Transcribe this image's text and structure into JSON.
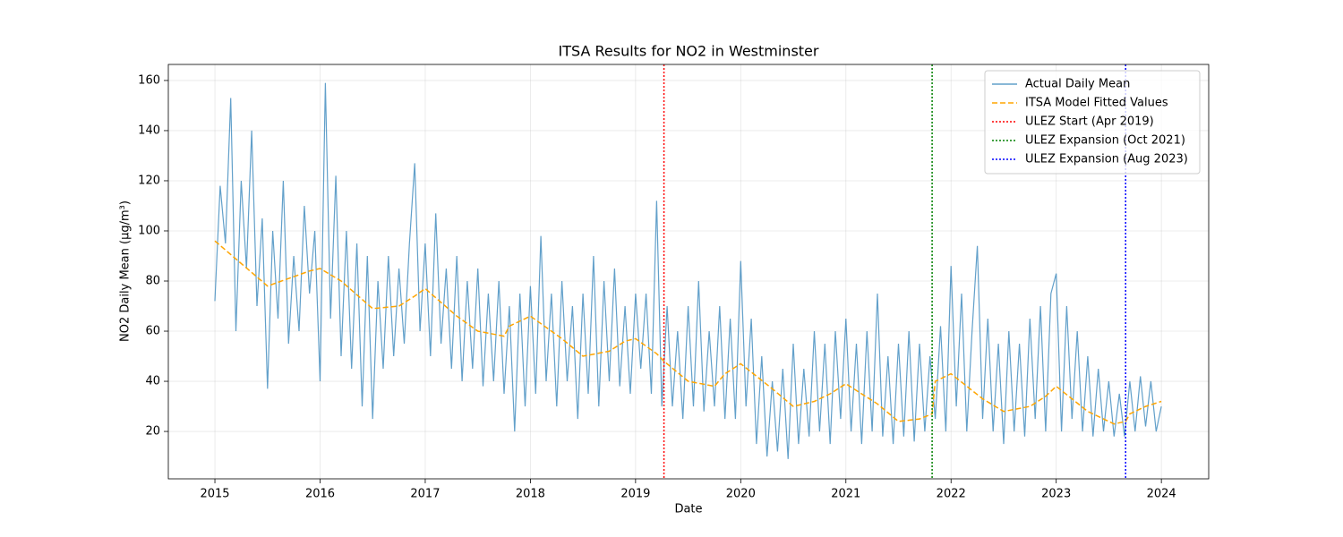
{
  "chart_data": {
    "type": "line",
    "title": "ITSA Results for NO2 in Westminster",
    "x_label": "Date",
    "y_label": "NO2 Daily Mean (µg/m³)",
    "xlim": [
      2014.557,
      2024.45
    ],
    "ylim": [
      1.1,
      166.4
    ],
    "xticks": [
      2015,
      2016,
      2017,
      2018,
      2019,
      2020,
      2021,
      2022,
      2023,
      2024
    ],
    "yticks": [
      20,
      40,
      60,
      80,
      100,
      120,
      140,
      160
    ],
    "grid": true,
    "legend": "upper right",
    "series": [
      {
        "name": "Actual Daily Mean",
        "color": "#1f77b4",
        "opacity": 0.7,
        "style": "solid",
        "x": [
          2015,
          2015.05,
          2015.1,
          2015.15,
          2015.2,
          2015.25,
          2015.3,
          2015.35,
          2015.4,
          2015.45,
          2015.5,
          2015.55,
          2015.6,
          2015.65,
          2015.7,
          2015.75,
          2015.8,
          2015.85,
          2015.9,
          2015.95,
          2016,
          2016.05,
          2016.1,
          2016.15,
          2016.2,
          2016.25,
          2016.3,
          2016.35,
          2016.4,
          2016.45,
          2016.5,
          2016.55,
          2016.6,
          2016.65,
          2016.7,
          2016.75,
          2016.8,
          2016.85,
          2016.9,
          2016.95,
          2017,
          2017.05,
          2017.1,
          2017.15,
          2017.2,
          2017.25,
          2017.3,
          2017.35,
          2017.4,
          2017.45,
          2017.5,
          2017.55,
          2017.6,
          2017.65,
          2017.7,
          2017.75,
          2017.8,
          2017.85,
          2017.9,
          2017.95,
          2018,
          2018.05,
          2018.1,
          2018.15,
          2018.2,
          2018.25,
          2018.3,
          2018.35,
          2018.4,
          2018.45,
          2018.5,
          2018.55,
          2018.6,
          2018.65,
          2018.7,
          2018.75,
          2018.8,
          2018.85,
          2018.9,
          2018.95,
          2019,
          2019.05,
          2019.1,
          2019.15,
          2019.2,
          2019.25,
          2019.3,
          2019.35,
          2019.4,
          2019.45,
          2019.5,
          2019.55,
          2019.6,
          2019.65,
          2019.7,
          2019.75,
          2019.8,
          2019.85,
          2019.9,
          2019.95,
          2020,
          2020.05,
          2020.1,
          2020.15,
          2020.2,
          2020.25,
          2020.3,
          2020.35,
          2020.4,
          2020.45,
          2020.5,
          2020.55,
          2020.6,
          2020.65,
          2020.7,
          2020.75,
          2020.8,
          2020.85,
          2020.9,
          2020.95,
          2021,
          2021.05,
          2021.1,
          2021.15,
          2021.2,
          2021.25,
          2021.3,
          2021.35,
          2021.4,
          2021.45,
          2021.5,
          2021.55,
          2021.6,
          2021.65,
          2021.7,
          2021.75,
          2021.8,
          2021.85,
          2021.9,
          2021.95,
          2022,
          2022.05,
          2022.1,
          2022.15,
          2022.2,
          2022.25,
          2022.3,
          2022.35,
          2022.4,
          2022.45,
          2022.5,
          2022.55,
          2022.6,
          2022.65,
          2022.7,
          2022.75,
          2022.8,
          2022.85,
          2022.9,
          2022.95,
          2023,
          2023.05,
          2023.1,
          2023.15,
          2023.2,
          2023.25,
          2023.3,
          2023.35,
          2023.4,
          2023.45,
          2023.5,
          2023.55,
          2023.6,
          2023.65,
          2023.7,
          2023.75,
          2023.8,
          2023.85,
          2023.9,
          2023.95,
          2024
        ],
        "values": [
          72,
          118,
          95,
          153,
          60,
          120,
          85,
          140,
          70,
          105,
          37,
          100,
          65,
          120,
          55,
          90,
          60,
          110,
          75,
          100,
          40,
          159,
          65,
          122,
          50,
          100,
          45,
          95,
          30,
          90,
          25,
          80,
          45,
          90,
          50,
          85,
          55,
          95,
          127,
          60,
          95,
          50,
          107,
          55,
          85,
          45,
          90,
          40,
          80,
          45,
          85,
          38,
          75,
          40,
          80,
          35,
          70,
          20,
          75,
          30,
          78,
          35,
          98,
          40,
          75,
          30,
          80,
          40,
          70,
          25,
          75,
          35,
          90,
          30,
          80,
          40,
          85,
          38,
          70,
          35,
          75,
          45,
          75,
          35,
          112,
          30,
          70,
          30,
          60,
          25,
          70,
          30,
          80,
          28,
          60,
          30,
          70,
          25,
          65,
          25,
          88,
          30,
          65,
          15,
          50,
          10,
          40,
          12,
          45,
          9,
          55,
          15,
          45,
          18,
          60,
          20,
          55,
          15,
          60,
          25,
          65,
          20,
          55,
          15,
          60,
          20,
          75,
          18,
          50,
          15,
          55,
          18,
          60,
          16,
          55,
          20,
          50,
          25,
          62,
          20,
          86,
          30,
          75,
          20,
          60,
          94,
          25,
          65,
          20,
          55,
          15,
          60,
          20,
          55,
          18,
          65,
          25,
          70,
          20,
          75,
          83,
          20,
          70,
          25,
          60,
          20,
          50,
          18,
          45,
          20,
          40,
          18,
          35,
          18,
          40,
          20,
          42,
          22,
          40,
          20,
          30
        ]
      },
      {
        "name": "ITSA Model Fitted Values",
        "color": "#ffa500",
        "opacity": 1,
        "style": "dashed",
        "x": [
          2015,
          2015.5,
          2015.7,
          2015.9,
          2016,
          2016.2,
          2016.5,
          2016.75,
          2016.9,
          2017,
          2017.3,
          2017.5,
          2017.75,
          2017.8,
          2018,
          2018.3,
          2018.5,
          2018.75,
          2018.9,
          2019,
          2019.2,
          2019.27,
          2019.5,
          2019.75,
          2019.85,
          2020,
          2020.3,
          2020.5,
          2020.7,
          2020.85,
          2021,
          2021.3,
          2021.5,
          2021.7,
          2021.82,
          2021.85,
          2022,
          2022.3,
          2022.5,
          2022.75,
          2022.9,
          2023,
          2023.3,
          2023.55,
          2023.66,
          2023.7,
          2023.85,
          2024
        ],
        "values": [
          96,
          78,
          81,
          84,
          85,
          80,
          69,
          70,
          74,
          77,
          66,
          60,
          58,
          62,
          66,
          57,
          50,
          52,
          56,
          57,
          51,
          48,
          40,
          38,
          43,
          47,
          37,
          30,
          32,
          35,
          39,
          31,
          24,
          25,
          27,
          40,
          43,
          33,
          28,
          30,
          34,
          38,
          28,
          23,
          24,
          27,
          30,
          32
        ]
      }
    ],
    "vlines": [
      {
        "name": "ULEZ Start (Apr 2019)",
        "color": "#ff0000",
        "x": 2019.27
      },
      {
        "name": "ULEZ Expansion (Oct 2021)",
        "color": "#008000",
        "x": 2021.82
      },
      {
        "name": "ULEZ Expansion (Aug 2023)",
        "color": "#0000ff",
        "x": 2023.66
      }
    ]
  }
}
